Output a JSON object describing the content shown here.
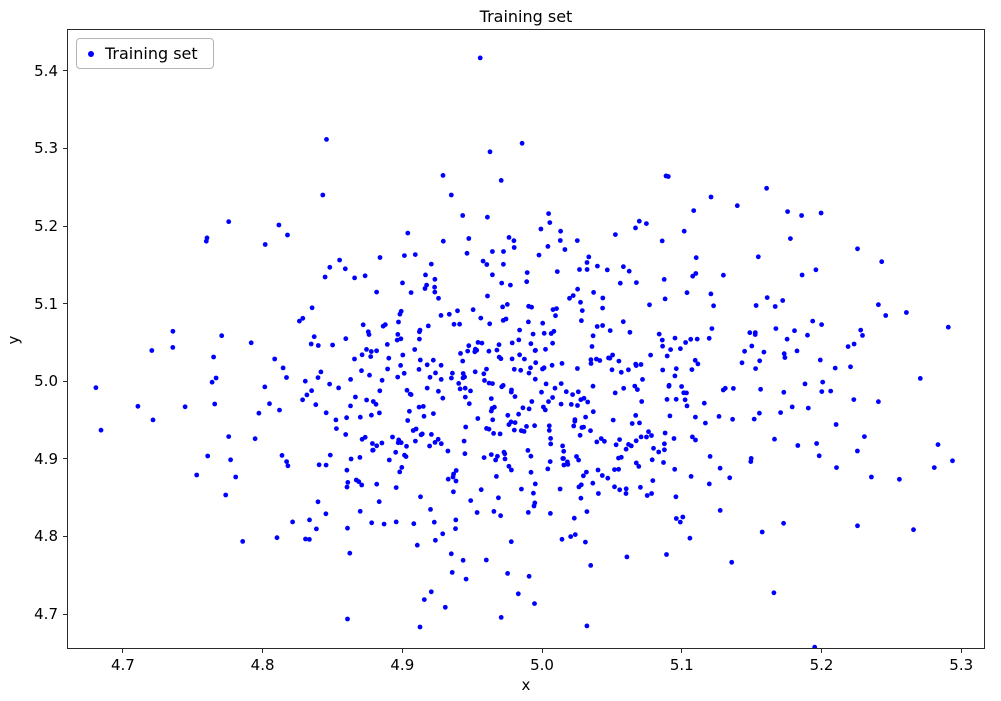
{
  "figure": {
    "title": "Training set",
    "xlabel": "x",
    "ylabel": "y"
  },
  "legend": {
    "label": "Training set",
    "marker_color": "#0000ff"
  },
  "colors": {
    "point": "#0000ff",
    "frame": "#2a2a2a",
    "background": "#ffffff",
    "legend_border": "#b4b4b4"
  },
  "chart_data": {
    "type": "scatter",
    "title": "Training set",
    "xlabel": "x",
    "ylabel": "y",
    "grid": false,
    "legend_position": "upper left",
    "xlim": [
      4.66,
      5.317
    ],
    "ylim": [
      4.655,
      5.454
    ],
    "x_ticks": [
      4.7,
      4.8,
      4.9,
      5.0,
      5.1,
      5.2,
      5.3
    ],
    "y_ticks": [
      4.7,
      4.8,
      4.9,
      5.0,
      5.1,
      5.2,
      5.3,
      5.4
    ],
    "tick_decimals": 1,
    "series": [
      {
        "name": "Training set",
        "color": "#0000ff",
        "marker": "dot",
        "marker_radius": 2.4,
        "distribution": {
          "kind": "gaussian",
          "n": 660,
          "mean": [
            4.99,
            4.995
          ],
          "std": [
            0.105,
            0.112
          ],
          "seed": 42
        },
        "outlier_points": [
          [
            4.955,
            5.418
          ],
          [
            4.845,
            5.313
          ],
          [
            4.985,
            5.308
          ],
          [
            4.962,
            5.297
          ],
          [
            5.088,
            5.266
          ],
          [
            5.16,
            5.25
          ],
          [
            5.175,
            5.22
          ],
          [
            5.185,
            5.215
          ],
          [
            5.225,
            5.172
          ],
          [
            4.775,
            5.207
          ],
          [
            4.68,
            4.993
          ],
          [
            4.71,
            4.969
          ],
          [
            4.72,
            5.041
          ],
          [
            4.735,
            5.045
          ],
          [
            4.765,
            4.972
          ],
          [
            4.77,
            5.06
          ],
          [
            4.78,
            4.878
          ],
          [
            4.785,
            4.795
          ],
          [
            4.775,
            4.93
          ],
          [
            4.76,
            4.905
          ],
          [
            5.29,
            5.071
          ],
          [
            5.27,
            5.005
          ],
          [
            5.26,
            5.09
          ],
          [
            5.24,
            4.975
          ],
          [
            5.255,
            4.875
          ],
          [
            5.235,
            4.878
          ],
          [
            5.225,
            4.815
          ],
          [
            5.21,
            4.89
          ],
          [
            5.28,
            4.89
          ],
          [
            5.23,
            4.93
          ],
          [
            5.22,
            5.02
          ],
          [
            5.24,
            5.1
          ],
          [
            4.86,
            4.695
          ],
          [
            4.97,
            4.697
          ],
          [
            4.93,
            4.71
          ],
          [
            4.915,
            4.72
          ],
          [
            4.92,
            4.73
          ],
          [
            4.935,
            4.755
          ],
          [
            4.99,
            4.75
          ],
          [
            5.135,
            4.768
          ],
          [
            5.06,
            4.775
          ],
          [
            4.91,
            4.79
          ],
          [
            4.83,
            4.798
          ],
          [
            4.86,
            4.812
          ]
        ]
      }
    ]
  },
  "layout_hints": {
    "axes_frame": "box",
    "tick_direction": "out"
  }
}
